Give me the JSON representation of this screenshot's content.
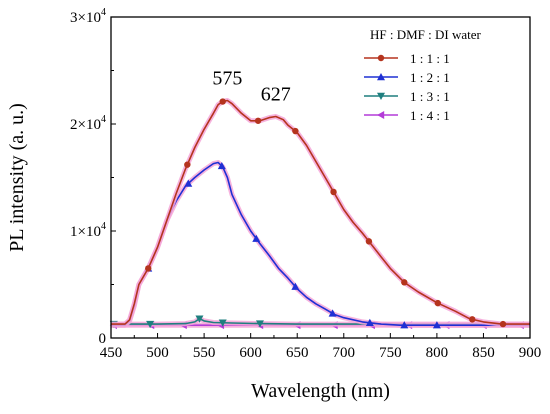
{
  "chart_data": {
    "type": "line",
    "xlabel": "Wavelength (nm)",
    "ylabel": "PL intensity (a. u.)",
    "xlim": [
      450,
      900
    ],
    "ylim": [
      0,
      30000
    ],
    "xticks": [
      "450",
      "500",
      "550",
      "600",
      "650",
      "700",
      "750",
      "800",
      "850",
      "900"
    ],
    "yticks": [
      {
        "value": 0,
        "base": "0",
        "exp": ""
      },
      {
        "value": 10000,
        "base": "1×10",
        "exp": "4"
      },
      {
        "value": 20000,
        "base": "2×10",
        "exp": "4"
      },
      {
        "value": 30000,
        "base": "3×10",
        "exp": "4"
      }
    ],
    "legend_title": "HF : DMF : DI water",
    "legend_position": "top-right",
    "annotations": [
      {
        "text": "575",
        "x": 575,
        "y": 23500
      },
      {
        "text": "627",
        "x": 627,
        "y": 22000
      }
    ],
    "series": [
      {
        "name": "1 : 1 : 1",
        "color": "#b5341e",
        "marker": "circle",
        "x": [
          450,
          465,
          470,
          475,
          480,
          490,
          500,
          510,
          520,
          530,
          540,
          550,
          560,
          565,
          570,
          575,
          580,
          590,
          600,
          610,
          620,
          627,
          635,
          640,
          650,
          660,
          670,
          680,
          690,
          700,
          710,
          720,
          730,
          740,
          750,
          765,
          780,
          800,
          820,
          835,
          850,
          870,
          885,
          900
        ],
        "y": [
          1300,
          1300,
          1700,
          3200,
          5000,
          6500,
          8500,
          11000,
          13500,
          15800,
          17800,
          19500,
          21000,
          21800,
          22100,
          22200,
          21900,
          21000,
          20300,
          20300,
          20600,
          20700,
          20400,
          19900,
          19200,
          18000,
          16500,
          15000,
          13500,
          12000,
          10800,
          9800,
          8700,
          7600,
          6500,
          5200,
          4300,
          3300,
          2500,
          1800,
          1500,
          1300,
          1300,
          1300
        ],
        "marker_x": [
          490,
          532,
          570,
          608,
          648,
          689,
          727,
          765,
          801,
          838,
          871
        ]
      },
      {
        "name": "1 : 2 : 1",
        "color": "#1f30d4",
        "marker": "triangle-up",
        "x": [
          450,
          465,
          470,
          475,
          480,
          490,
          500,
          510,
          520,
          530,
          540,
          550,
          560,
          565,
          570,
          575,
          580,
          590,
          600,
          610,
          620,
          630,
          640,
          650,
          660,
          670,
          680,
          690,
          700,
          720,
          740,
          760,
          780,
          800,
          830,
          860,
          900
        ],
        "y": [
          1200,
          1200,
          1600,
          3000,
          5000,
          6500,
          8500,
          11000,
          12800,
          14200,
          15000,
          15700,
          16300,
          16400,
          16000,
          15000,
          13400,
          11500,
          10000,
          8800,
          7700,
          6500,
          5600,
          4600,
          3800,
          3200,
          2700,
          2200,
          1900,
          1500,
          1300,
          1200,
          1200,
          1200,
          1200,
          1200,
          1200
        ],
        "marker_x": [
          490,
          533,
          569,
          606,
          648,
          688,
          728,
          765,
          800
        ]
      },
      {
        "name": "1 : 3 : 1",
        "color": "#1f7f7f",
        "marker": "triangle-down",
        "x": [
          450,
          500,
          530,
          540,
          545,
          550,
          560,
          580,
          610,
          650,
          700,
          750,
          800,
          850,
          900
        ],
        "y": [
          1300,
          1300,
          1350,
          1500,
          1800,
          1600,
          1450,
          1400,
          1350,
          1300,
          1300,
          1300,
          1300,
          1300,
          1300
        ],
        "marker_x": [
          453,
          492,
          545,
          570,
          610
        ]
      },
      {
        "name": "1 : 4 : 1",
        "color": "#b43cd8",
        "marker": "triangle-left",
        "x": [
          450,
          500,
          550,
          600,
          650,
          700,
          750,
          800,
          850,
          900
        ],
        "y": [
          1200,
          1200,
          1200,
          1200,
          1200,
          1200,
          1200,
          1200,
          1200,
          1200
        ],
        "marker_x": [
          453,
          493,
          528,
          568,
          610,
          650,
          690,
          730,
          770,
          810,
          850,
          890
        ]
      }
    ]
  }
}
